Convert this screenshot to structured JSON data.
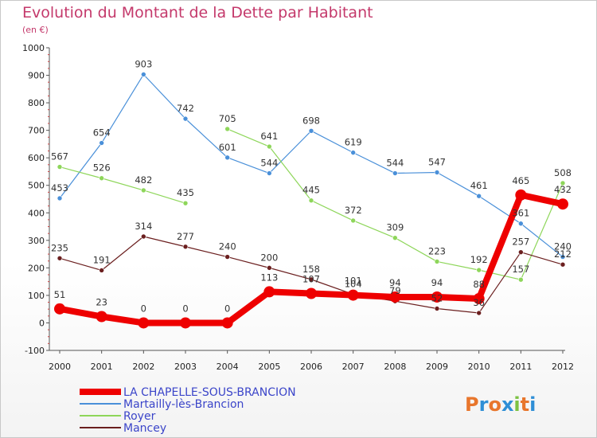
{
  "chart_data": {
    "type": "line",
    "title": "Evolution du Montant de la Dette par Habitant",
    "subtitle": "(en €)",
    "x": [
      "2000",
      "2001",
      "2002",
      "2003",
      "2004",
      "2005",
      "2006",
      "2007",
      "2008",
      "2009",
      "2010",
      "2011",
      "2012"
    ],
    "ylim": [
      -100,
      1000
    ],
    "yticks": [
      -100,
      0,
      100,
      200,
      300,
      400,
      500,
      600,
      700,
      800,
      900,
      1000
    ],
    "grid": false,
    "legend_position": "bottom-left",
    "series": [
      {
        "name": "Martailly-lès-Brancion",
        "color": "#4a90d9",
        "width": 1.2,
        "values": [
          453,
          654,
          903,
          742,
          601,
          544,
          698,
          619,
          544,
          547,
          461,
          361,
          240
        ]
      },
      {
        "name": "Royer",
        "color": "#8ed65a",
        "width": 1.2,
        "values": [
          567,
          526,
          482,
          435,
          null,
          null,
          null,
          null,
          null,
          null,
          null,
          null,
          null
        ]
      },
      {
        "name": "Royer",
        "color": "#8ed65a",
        "width": 1.2,
        "values": [
          null,
          null,
          null,
          null,
          705,
          641,
          445,
          372,
          309,
          223,
          192,
          157,
          508
        ]
      },
      {
        "name": "Mancey",
        "color": "#6b1f1f",
        "width": 1.2,
        "values": [
          235,
          191,
          314,
          277,
          240,
          200,
          158,
          104,
          79,
          52,
          36,
          257,
          212
        ]
      },
      {
        "name": "LA CHAPELLE-SOUS-BRANCION",
        "color": "#ee0000",
        "width": 8,
        "values": [
          51,
          23,
          0,
          0,
          0,
          113,
          107,
          101,
          94,
          94,
          88,
          465,
          432
        ]
      }
    ],
    "legend": [
      {
        "name": "LA CHAPELLE-SOUS-BRANCION",
        "color": "#ee0000",
        "width": 8
      },
      {
        "name": "Martailly-lès-Brancion",
        "color": "#4a90d9",
        "width": 2
      },
      {
        "name": "Royer",
        "color": "#8ed65a",
        "width": 2
      },
      {
        "name": "Mancey",
        "color": "#6b1f1f",
        "width": 2
      }
    ]
  },
  "logo": {
    "text": "Proxiti",
    "colors": [
      "#e8762c",
      "#2f8fd6",
      "#e8762c",
      "#2f8fd6",
      "#7cc242",
      "#e8762c",
      "#2f8fd6"
    ]
  }
}
